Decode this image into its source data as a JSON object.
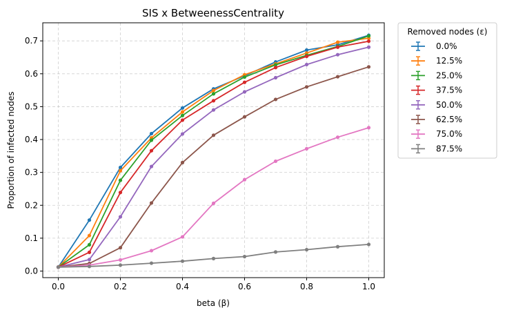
{
  "chart_data": {
    "type": "line",
    "title": "SIS x BetweenessCentrality",
    "xlabel": "beta (β)",
    "ylabel": "Proportion of infected nodes",
    "xlim": [
      -0.05,
      1.05
    ],
    "ylim": [
      -0.02,
      0.755
    ],
    "xticks": [
      "0.0",
      "0.2",
      "0.4",
      "0.6",
      "0.8",
      "1.0"
    ],
    "yticks": [
      "0.0",
      "0.1",
      "0.2",
      "0.3",
      "0.4",
      "0.5",
      "0.6",
      "0.7"
    ],
    "grid": true,
    "legend_title": "Removed nodes (ε)",
    "legend_position": "outside-top-right",
    "x": [
      0.0,
      0.1,
      0.2,
      0.3,
      0.4,
      0.5,
      0.6,
      0.7,
      0.8,
      0.9,
      1.0
    ],
    "series": [
      {
        "name": "0.0%",
        "color": "#1f77b4",
        "values": [
          0.012,
          0.155,
          0.315,
          0.418,
          0.496,
          0.554,
          0.594,
          0.636,
          0.672,
          0.688,
          0.717
        ]
      },
      {
        "name": "12.5%",
        "color": "#ff7f0e",
        "values": [
          0.012,
          0.108,
          0.305,
          0.405,
          0.484,
          0.549,
          0.597,
          0.63,
          0.663,
          0.696,
          0.708
        ]
      },
      {
        "name": "25.0%",
        "color": "#2ca02c",
        "values": [
          0.012,
          0.08,
          0.276,
          0.398,
          0.473,
          0.539,
          0.59,
          0.627,
          0.656,
          0.683,
          0.715
        ]
      },
      {
        "name": "37.5%",
        "color": "#d62728",
        "values": [
          0.012,
          0.057,
          0.239,
          0.366,
          0.459,
          0.518,
          0.574,
          0.619,
          0.653,
          0.681,
          0.699
        ]
      },
      {
        "name": "50.0%",
        "color": "#9467bd",
        "values": [
          0.012,
          0.035,
          0.165,
          0.318,
          0.417,
          0.49,
          0.545,
          0.588,
          0.628,
          0.658,
          0.681
        ]
      },
      {
        "name": "62.5%",
        "color": "#8c564b",
        "values": [
          0.012,
          0.023,
          0.071,
          0.207,
          0.33,
          0.413,
          0.469,
          0.522,
          0.56,
          0.591,
          0.621
        ]
      },
      {
        "name": "75.0%",
        "color": "#e377c2",
        "values": [
          0.012,
          0.018,
          0.034,
          0.062,
          0.104,
          0.206,
          0.278,
          0.334,
          0.372,
          0.407,
          0.436
        ]
      },
      {
        "name": "87.5%",
        "color": "#7f7f7f",
        "values": [
          0.012,
          0.014,
          0.018,
          0.024,
          0.03,
          0.038,
          0.044,
          0.058,
          0.065,
          0.074,
          0.081
        ]
      }
    ]
  }
}
